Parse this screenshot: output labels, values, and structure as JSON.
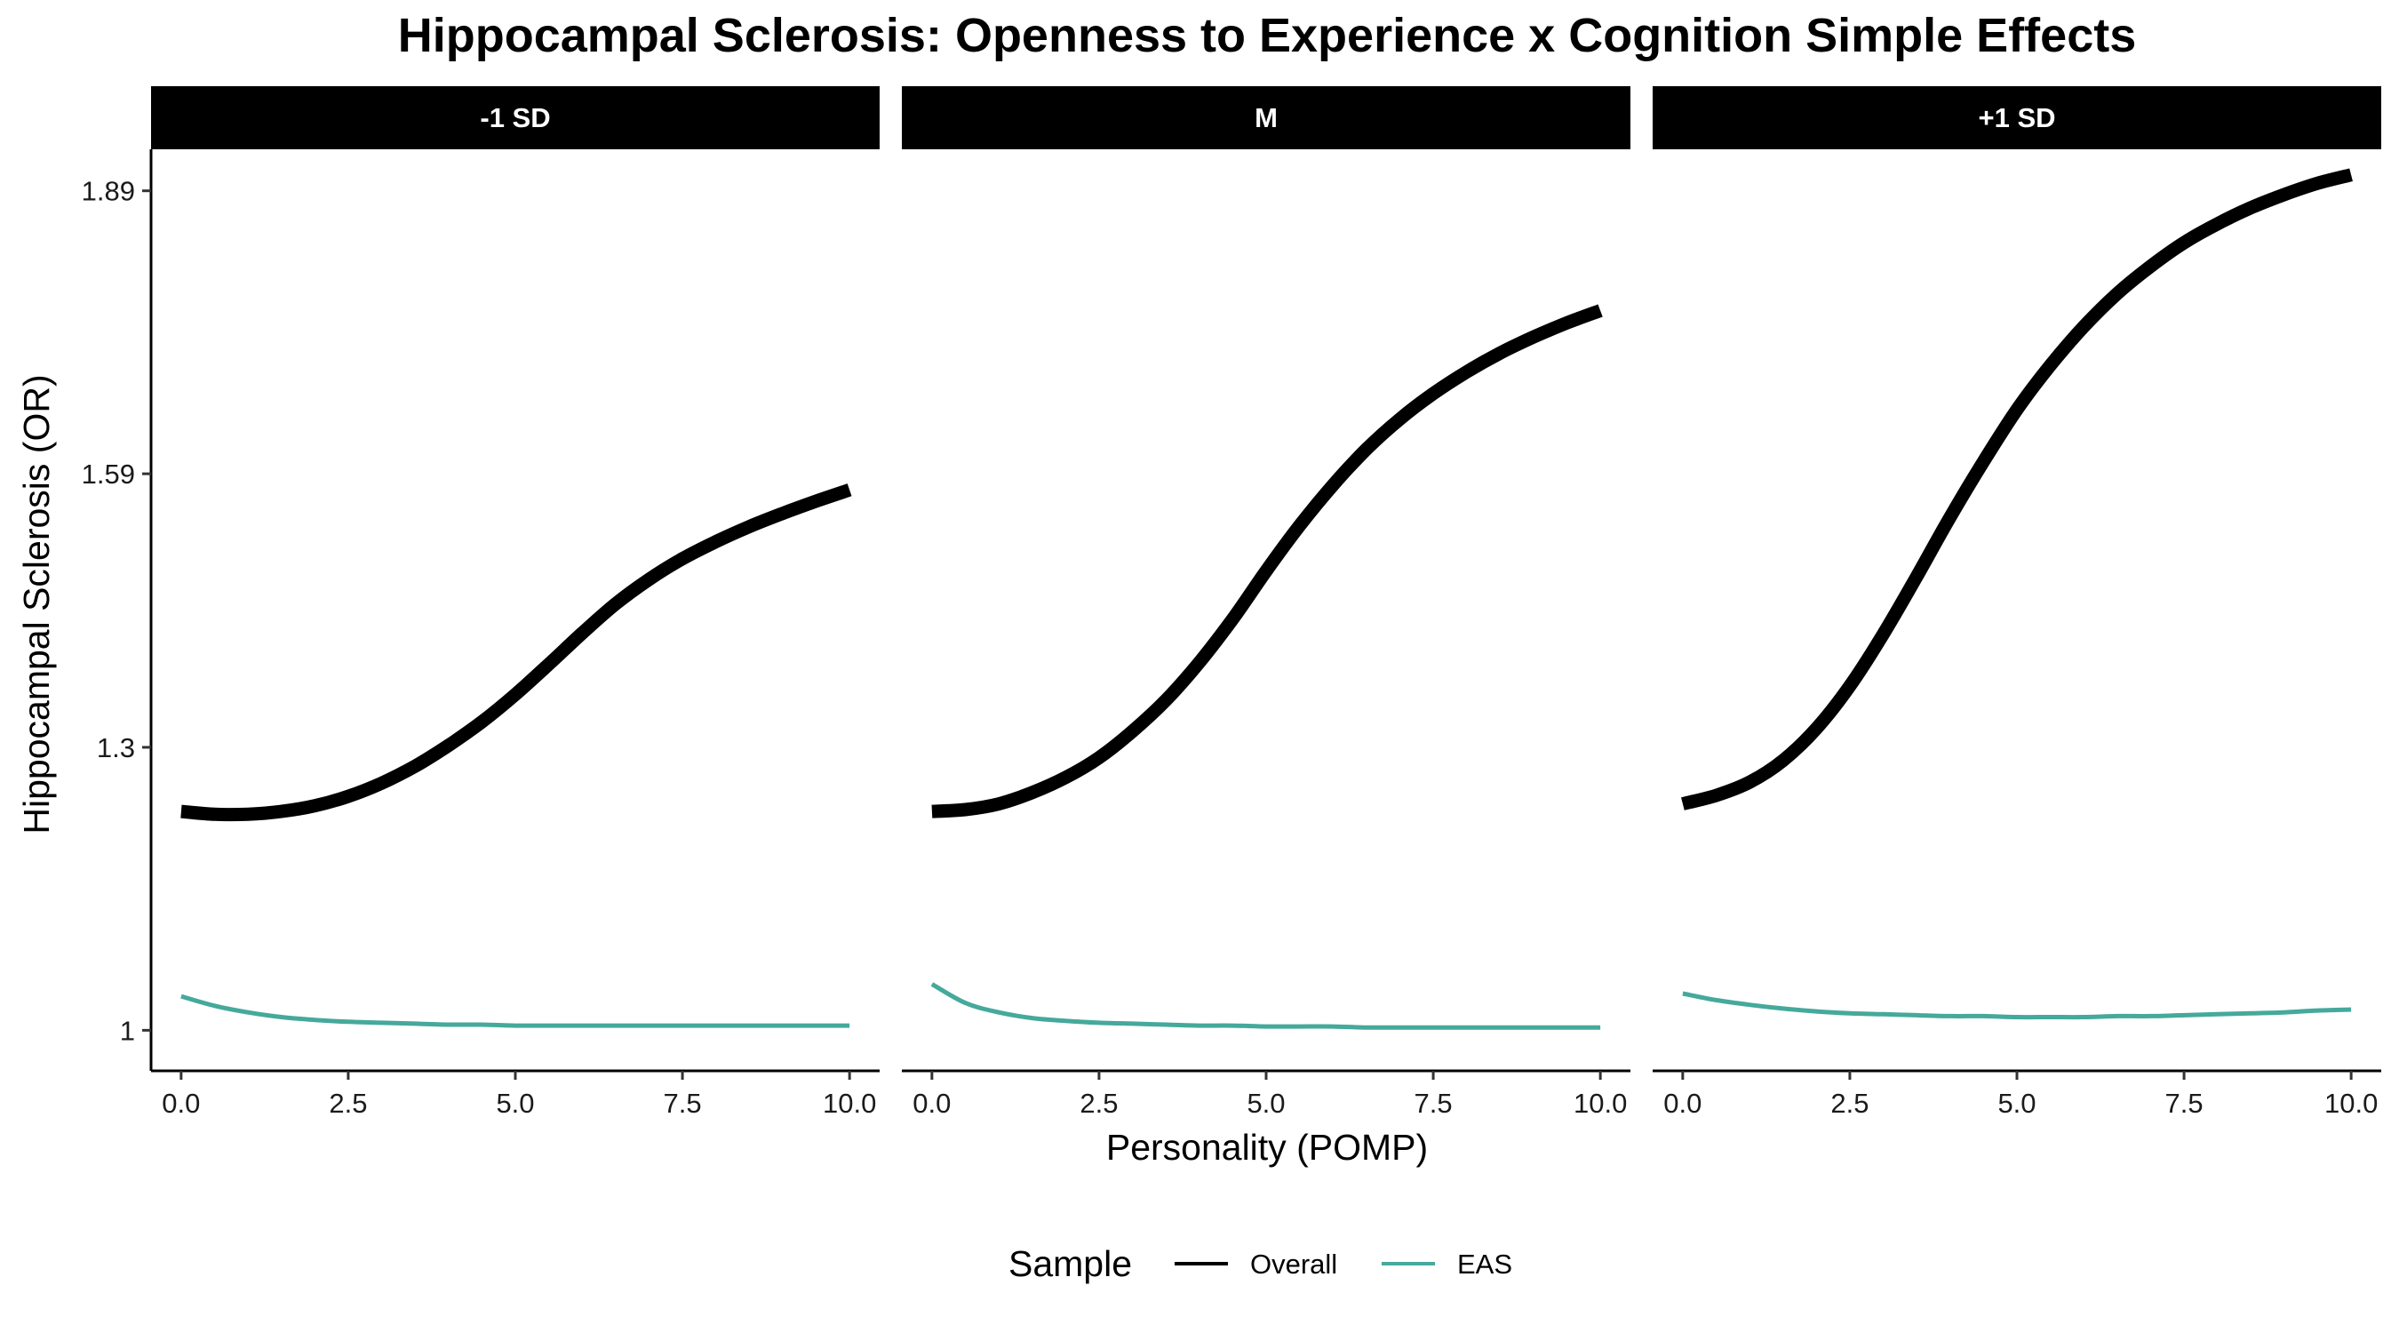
{
  "chart_data": {
    "type": "line",
    "title": "Hippocampal Sclerosis: Openness to Experience x Cognition Simple Effects",
    "xlabel": "Personality (POMP)",
    "ylabel": "Hippocampal Sclerosis (OR)",
    "x_ticks": [
      "0.0",
      "2.5",
      "5.0",
      "7.5",
      "10.0"
    ],
    "x_tick_values": [
      0,
      2.5,
      5,
      7.5,
      10
    ],
    "xlim": [
      -0.45,
      10.45
    ],
    "y_ticks": [
      "1",
      "1.3",
      "1.59",
      "1.89"
    ],
    "y_tick_values": [
      1,
      1.3,
      1.59,
      1.89
    ],
    "ylim": [
      0.957,
      1.934
    ],
    "grid": false,
    "legend": {
      "title": "Sample",
      "position": "bottom",
      "entries": [
        {
          "label": "Overall",
          "color": "#000000"
        },
        {
          "label": "EAS",
          "color": "#45A99B"
        }
      ]
    },
    "x": [
      0,
      0.5,
      1,
      1.5,
      2,
      2.5,
      3,
      3.5,
      4,
      4.5,
      5,
      5.5,
      6,
      6.5,
      7,
      7.5,
      8,
      8.5,
      9,
      9.5,
      10
    ],
    "panels": [
      {
        "label": "-1 SD",
        "series": [
          {
            "name": "Overall",
            "values": [
              1.232,
              1.229,
              1.229,
              1.232,
              1.238,
              1.248,
              1.262,
              1.28,
              1.302,
              1.327,
              1.356,
              1.388,
              1.421,
              1.452,
              1.478,
              1.5,
              1.518,
              1.534,
              1.548,
              1.561,
              1.573
            ]
          },
          {
            "name": "EAS",
            "values": [
              1.036,
              1.026,
              1.019,
              1.014,
              1.011,
              1.009,
              1.008,
              1.007,
              1.006,
              1.006,
              1.005,
              1.005,
              1.005,
              1.005,
              1.005,
              1.005,
              1.005,
              1.005,
              1.005,
              1.005,
              1.005
            ]
          }
        ]
      },
      {
        "label": "M",
        "series": [
          {
            "name": "Overall",
            "values": [
              1.232,
              1.234,
              1.24,
              1.252,
              1.268,
              1.289,
              1.317,
              1.35,
              1.39,
              1.436,
              1.487,
              1.535,
              1.578,
              1.616,
              1.648,
              1.675,
              1.698,
              1.718,
              1.735,
              1.75,
              1.763
            ]
          },
          {
            "name": "EAS",
            "values": [
              1.049,
              1.029,
              1.019,
              1.013,
              1.01,
              1.008,
              1.007,
              1.006,
              1.005,
              1.005,
              1.004,
              1.004,
              1.004,
              1.003,
              1.003,
              1.003,
              1.003,
              1.003,
              1.003,
              1.003,
              1.003
            ]
          }
        ]
      },
      {
        "label": "+1 SD",
        "series": [
          {
            "name": "Overall",
            "values": [
              1.24,
              1.249,
              1.263,
              1.286,
              1.32,
              1.365,
              1.42,
              1.481,
              1.544,
              1.603,
              1.658,
              1.705,
              1.746,
              1.781,
              1.81,
              1.835,
              1.855,
              1.872,
              1.886,
              1.898,
              1.907
            ]
          },
          {
            "name": "EAS",
            "values": [
              1.039,
              1.032,
              1.027,
              1.023,
              1.02,
              1.018,
              1.017,
              1.016,
              1.015,
              1.015,
              1.014,
              1.014,
              1.014,
              1.015,
              1.015,
              1.016,
              1.017,
              1.018,
              1.019,
              1.021,
              1.022
            ]
          }
        ]
      }
    ]
  }
}
